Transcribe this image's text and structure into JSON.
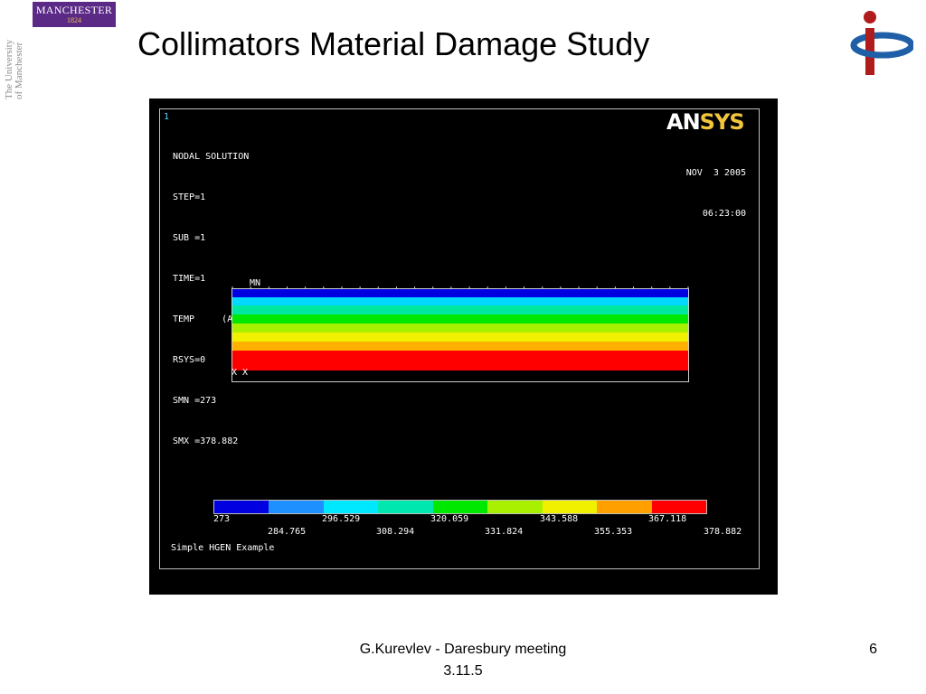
{
  "header": {
    "manchester_logo": "MANCHESTER",
    "manchester_year": "1824",
    "university_line1": "The University",
    "university_line2": "of Manchester",
    "title": "Collimators Material Damage Study"
  },
  "ansys": {
    "window_number": "1",
    "info_lines": [
      "NODAL SOLUTION",
      "STEP=1",
      "SUB =1",
      "TIME=1",
      "TEMP     (AVG)",
      "RSYS=0",
      "SMN =273",
      "SMX =378.882"
    ],
    "logo_an": "AN",
    "logo_sys": "SYS",
    "date": "NOV  3 2005",
    "time": "06:23:00",
    "mn_label": "MN",
    "origin_marker": "X X",
    "plate_bands": [
      {
        "color": "#0000e0",
        "fraction": 0.09
      },
      {
        "color": "#00d8ff",
        "fraction": 0.09
      },
      {
        "color": "#00e8a0",
        "fraction": 0.1
      },
      {
        "color": "#00e800",
        "fraction": 0.1
      },
      {
        "color": "#a8f000",
        "fraction": 0.1
      },
      {
        "color": "#f0f000",
        "fraction": 0.1
      },
      {
        "color": "#ffb000",
        "fraction": 0.1
      },
      {
        "color": "#ff0000",
        "fraction": 0.22
      }
    ],
    "legend_colors": [
      "#0000e0",
      "#1e90ff",
      "#00e8ff",
      "#00e8b0",
      "#00e800",
      "#a8f000",
      "#f0f000",
      "#ffa000",
      "#ff0000"
    ],
    "legend_values_top": [
      "273",
      "296.529",
      "320.059",
      "343.588",
      "367.118"
    ],
    "legend_values_bottom": [
      "284.765",
      "308.294",
      "331.824",
      "355.353",
      "378.882"
    ],
    "caption": "Simple HGEN Example"
  },
  "footer": {
    "line1": "G.Kurevlev - Daresbury meeting",
    "line2": "3.11.5",
    "page_number": "6"
  }
}
